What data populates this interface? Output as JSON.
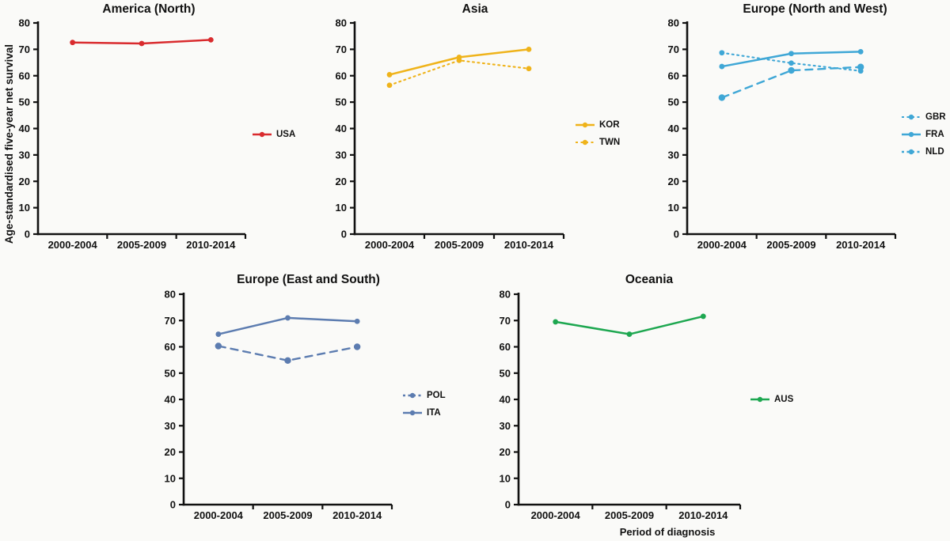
{
  "figure": {
    "ylabel": "Age-standardised five-year net survival",
    "xlabel": "Period of diagnosis"
  },
  "chart_data": [
    {
      "type": "line",
      "title": "America (North)",
      "categories": [
        "2000-2004",
        "2005-2009",
        "2010-2014"
      ],
      "ylim": [
        0,
        80
      ],
      "yticks": [
        0,
        10,
        20,
        30,
        40,
        50,
        60,
        70,
        80
      ],
      "color": "#d92b2e",
      "series": [
        {
          "name": "USA",
          "line_style": "solid",
          "values": [
            72.6,
            72.2,
            73.6
          ]
        }
      ],
      "legend_position": "right"
    },
    {
      "type": "line",
      "title": "Asia",
      "categories": [
        "2000-2004",
        "2005-2009",
        "2010-2014"
      ],
      "ylim": [
        0,
        80
      ],
      "yticks": [
        0,
        10,
        20,
        30,
        40,
        50,
        60,
        70,
        80
      ],
      "color": "#efb31a",
      "series": [
        {
          "name": "KOR",
          "line_style": "solid",
          "values": [
            60.4,
            67.0,
            70.0
          ]
        },
        {
          "name": "TWN",
          "line_style": "dotted",
          "values": [
            56.4,
            65.8,
            62.7
          ]
        }
      ],
      "legend_position": "right"
    },
    {
      "type": "line",
      "title": "Europe (North and West)",
      "categories": [
        "2000-2004",
        "2005-2009",
        "2010-2014"
      ],
      "ylim": [
        0,
        80
      ],
      "yticks": [
        0,
        10,
        20,
        30,
        40,
        50,
        60,
        70,
        80
      ],
      "color": "#3fa7d6",
      "series": [
        {
          "name": "GBR",
          "line_style": "dotted",
          "values": [
            68.7,
            64.8,
            61.8
          ]
        },
        {
          "name": "FRA",
          "line_style": "solid",
          "values": [
            63.5,
            68.4,
            69.1
          ]
        },
        {
          "name": "NLD",
          "line_style": "dashed",
          "values": [
            51.7,
            62.0,
            63.3
          ]
        }
      ],
      "legend_position": "right"
    },
    {
      "type": "line",
      "title": "Europe (East and South)",
      "categories": [
        "2000-2004",
        "2005-2009",
        "2010-2014"
      ],
      "ylim": [
        0,
        80
      ],
      "yticks": [
        0,
        10,
        20,
        30,
        40,
        50,
        60,
        70,
        80
      ],
      "color": "#5c7cb0",
      "series": [
        {
          "name": "POL",
          "line_style": "dashed",
          "values": [
            60.3,
            54.8,
            60.0
          ]
        },
        {
          "name": "ITA",
          "line_style": "solid",
          "values": [
            64.8,
            71.0,
            69.7
          ]
        }
      ],
      "legend_position": "right"
    },
    {
      "type": "line",
      "title": "Oceania",
      "categories": [
        "2000-2004",
        "2005-2009",
        "2010-2014"
      ],
      "ylim": [
        0,
        80
      ],
      "yticks": [
        0,
        10,
        20,
        30,
        40,
        50,
        60,
        70,
        80
      ],
      "color": "#1da750",
      "series": [
        {
          "name": "AUS",
          "line_style": "solid",
          "values": [
            69.5,
            64.8,
            71.6
          ]
        }
      ],
      "legend_position": "right"
    }
  ]
}
